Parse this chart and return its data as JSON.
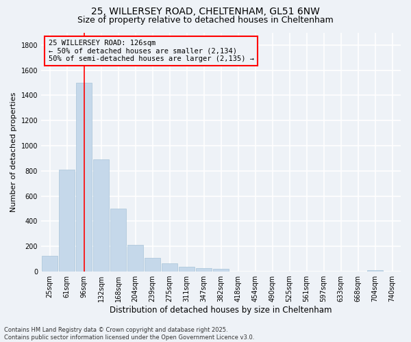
{
  "title_line1": "25, WILLERSEY ROAD, CHELTENHAM, GL51 6NW",
  "title_line2": "Size of property relative to detached houses in Cheltenham",
  "xlabel": "Distribution of detached houses by size in Cheltenham",
  "ylabel": "Number of detached properties",
  "bar_color": "#c5d8ea",
  "bar_edgecolor": "#a8c4d8",
  "categories": [
    "25sqm",
    "61sqm",
    "96sqm",
    "132sqm",
    "168sqm",
    "204sqm",
    "239sqm",
    "275sqm",
    "311sqm",
    "347sqm",
    "382sqm",
    "418sqm",
    "454sqm",
    "490sqm",
    "525sqm",
    "561sqm",
    "597sqm",
    "633sqm",
    "668sqm",
    "704sqm",
    "740sqm"
  ],
  "values": [
    125,
    810,
    1500,
    890,
    500,
    210,
    110,
    65,
    40,
    28,
    22,
    0,
    0,
    0,
    0,
    0,
    0,
    0,
    0,
    10,
    0
  ],
  "ylim": [
    0,
    1900
  ],
  "yticks": [
    0,
    200,
    400,
    600,
    800,
    1000,
    1200,
    1400,
    1600,
    1800
  ],
  "vline_x": 2.0,
  "annotation_text": "25 WILLERSEY ROAD: 126sqm\n← 50% of detached houses are smaller (2,134)\n50% of semi-detached houses are larger (2,135) →",
  "footer_line1": "Contains HM Land Registry data © Crown copyright and database right 2025.",
  "footer_line2": "Contains public sector information licensed under the Open Government Licence v3.0.",
  "background_color": "#eef2f7",
  "grid_color": "#ffffff",
  "title_fontsize": 10,
  "subtitle_fontsize": 9,
  "tick_fontsize": 7,
  "ylabel_fontsize": 8,
  "xlabel_fontsize": 8.5,
  "footer_fontsize": 6,
  "ann_fontsize": 7.5
}
